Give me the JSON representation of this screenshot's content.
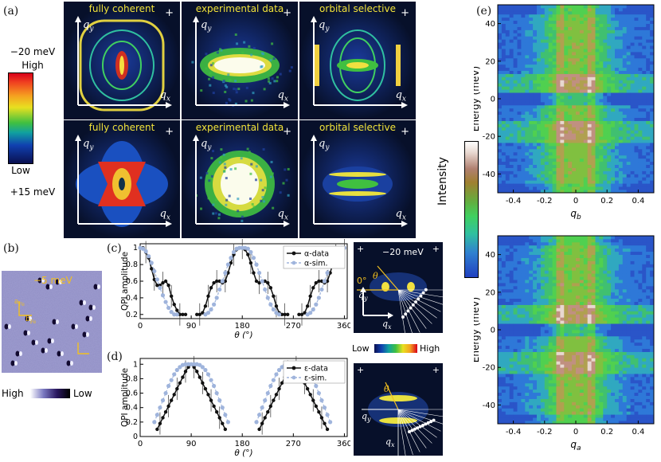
{
  "panel_labels": {
    "a": "(a)",
    "b": "(b)",
    "c": "(c)",
    "d": "(d)",
    "e": "(e)"
  },
  "colorbar_a": {
    "top_energy": "−20 meV",
    "high": "High",
    "low": "Low",
    "bottom_energy": "+15 meV"
  },
  "tiles": {
    "titles": [
      "fully coherent",
      "experimental data",
      "orbital selective"
    ],
    "qx": "q",
    "qx_sub": "x",
    "qy": "q",
    "qy_sub": "y",
    "plus": "+"
  },
  "panel_b": {
    "energy": "−5 meV",
    "high": "High",
    "low": "Low",
    "a_label": "a",
    "a_sub": "Fe",
    "b_label": "b",
    "b_sub": "Fe"
  },
  "panel_c_inset": {
    "energy": "−20 meV",
    "zero": "0°",
    "theta": "θ",
    "qy": "q",
    "qy_sub": "y",
    "qx": "q",
    "qx_sub": "x",
    "plus": "+"
  },
  "mid_colorbar": {
    "low": "Low",
    "high": "High"
  },
  "panel_d_inset": {
    "theta": "θ",
    "qy": "q",
    "qy_sub": "y",
    "qx": "q",
    "qx_sub": "x",
    "plus": "+"
  },
  "panel_e": {
    "intensity_label": "Intensity",
    "ylabel": "Energy (meV)",
    "xlabel_top": "q",
    "xlabel_top_sub": "b",
    "xlabel_bottom": "q",
    "xlabel_bottom_sub": "a"
  },
  "chart_data": [
    {
      "type": "line",
      "panel": "c",
      "ylabel": "QPI amplitude",
      "xlabel": "θ (°)",
      "xlim": [
        0,
        365
      ],
      "ylim": [
        0.15,
        1.05
      ],
      "xticks": [
        0,
        90,
        180,
        270,
        360
      ],
      "yticks": [
        0.2,
        0.4,
        0.6,
        0.8,
        1
      ],
      "legend_position": "top-right",
      "series": [
        {
          "name": "α-data",
          "color": "#111111",
          "segments": [
            {
              "x": [
                5,
                10,
                15,
                20,
                25,
                30,
                35,
                40,
                45,
                50,
                55,
                60,
                65,
                70,
                75,
                80
              ],
              "y": [
                1.0,
                0.95,
                0.88,
                0.75,
                0.62,
                0.55,
                0.55,
                0.58,
                0.6,
                0.55,
                0.42,
                0.32,
                0.25,
                0.2,
                0.2,
                0.2
              ]
            },
            {
              "x": [
                100,
                105,
                110,
                115,
                120,
                125,
                130,
                135,
                140,
                145,
                150,
                155,
                160,
                165,
                170,
                175,
                180,
                185,
                190,
                195,
                200,
                205,
                210,
                215,
                220,
                225,
                230,
                235,
                240,
                245,
                250,
                255,
                260
              ],
              "y": [
                0.2,
                0.2,
                0.22,
                0.3,
                0.42,
                0.52,
                0.58,
                0.6,
                0.6,
                0.58,
                0.6,
                0.7,
                0.82,
                0.92,
                0.98,
                1.0,
                1.0,
                0.98,
                0.92,
                0.82,
                0.7,
                0.6,
                0.58,
                0.6,
                0.6,
                0.58,
                0.52,
                0.42,
                0.3,
                0.22,
                0.2,
                0.2,
                0.2
              ]
            },
            {
              "x": [
                280,
                285,
                290,
                295,
                300,
                305,
                310,
                315,
                320,
                325,
                330,
                335,
                340,
                345,
                350,
                355,
                360
              ],
              "y": [
                0.2,
                0.2,
                0.22,
                0.3,
                0.42,
                0.52,
                0.58,
                0.6,
                0.6,
                0.58,
                0.6,
                0.7,
                0.82,
                0.92,
                0.98,
                1.0,
                1.0
              ]
            }
          ]
        },
        {
          "name": "α-sim.",
          "color": "#9fb4dc",
          "segments": [
            {
              "x": [
                0,
                5,
                10,
                15,
                20,
                25,
                30,
                35,
                40,
                45,
                50,
                55,
                60,
                65
              ],
              "y": [
                1.0,
                0.99,
                0.96,
                0.9,
                0.82,
                0.72,
                0.62,
                0.52,
                0.43,
                0.35,
                0.28,
                0.23,
                0.2,
                0.2
              ]
            },
            {
              "x": [
                115,
                120,
                125,
                130,
                135,
                140,
                145,
                150,
                155,
                160,
                165,
                170,
                175,
                180,
                185,
                190,
                195,
                200,
                205,
                210,
                215,
                220,
                225,
                230,
                235,
                240,
                245
              ],
              "y": [
                0.2,
                0.22,
                0.26,
                0.32,
                0.4,
                0.5,
                0.6,
                0.7,
                0.8,
                0.88,
                0.95,
                0.99,
                1.0,
                1.0,
                1.0,
                0.99,
                0.95,
                0.88,
                0.8,
                0.7,
                0.6,
                0.5,
                0.4,
                0.32,
                0.26,
                0.22,
                0.2
              ]
            },
            {
              "x": [
                295,
                300,
                305,
                310,
                315,
                320,
                325,
                330,
                335,
                340,
                345,
                350,
                355,
                360
              ],
              "y": [
                0.2,
                0.22,
                0.26,
                0.32,
                0.4,
                0.5,
                0.6,
                0.7,
                0.8,
                0.88,
                0.95,
                0.99,
                1.0,
                1.0
              ]
            }
          ]
        }
      ]
    },
    {
      "type": "line",
      "panel": "d",
      "ylabel": "QPI amplitude",
      "xlabel": "θ (°)",
      "xlim": [
        0,
        365
      ],
      "ylim": [
        0,
        1.08
      ],
      "xticks": [
        0,
        90,
        180,
        270,
        360
      ],
      "yticks": [
        0,
        0.2,
        0.4,
        0.6,
        0.8,
        1
      ],
      "legend_position": "top-right",
      "series": [
        {
          "name": "ε-data",
          "color": "#111111",
          "segments": [
            {
              "x": [
                30,
                35,
                40,
                45,
                50,
                55,
                60,
                65,
                70,
                75,
                80,
                85,
                90,
                95,
                100,
                105,
                110,
                115,
                120,
                125,
                130,
                135,
                140,
                145,
                150
              ],
              "y": [
                0.1,
                0.18,
                0.26,
                0.34,
                0.42,
                0.5,
                0.58,
                0.66,
                0.74,
                0.82,
                0.9,
                0.96,
                1.0,
                0.96,
                0.9,
                0.82,
                0.74,
                0.66,
                0.58,
                0.5,
                0.42,
                0.34,
                0.26,
                0.18,
                0.1
              ]
            },
            {
              "x": [
                210,
                215,
                220,
                225,
                230,
                235,
                240,
                245,
                250,
                255,
                260,
                265,
                270,
                275,
                280,
                285,
                290,
                295,
                300,
                305,
                310,
                315,
                320,
                325,
                330
              ],
              "y": [
                0.1,
                0.18,
                0.26,
                0.34,
                0.42,
                0.5,
                0.58,
                0.66,
                0.74,
                0.82,
                0.9,
                0.96,
                1.0,
                0.96,
                0.9,
                0.82,
                0.74,
                0.66,
                0.58,
                0.5,
                0.42,
                0.34,
                0.26,
                0.18,
                0.1
              ]
            }
          ]
        },
        {
          "name": "ε-sim.",
          "color": "#9fb4dc",
          "segments": [
            {
              "x": [
                25,
                30,
                35,
                40,
                45,
                50,
                55,
                60,
                65,
                70,
                75,
                80,
                85,
                90,
                95,
                100,
                105,
                110,
                115,
                120,
                125,
                130,
                135,
                140,
                145,
                150,
                155
              ],
              "y": [
                0.2,
                0.3,
                0.4,
                0.5,
                0.6,
                0.7,
                0.78,
                0.86,
                0.92,
                0.96,
                0.99,
                1.0,
                1.0,
                1.0,
                1.0,
                1.0,
                0.99,
                0.96,
                0.92,
                0.86,
                0.78,
                0.7,
                0.6,
                0.5,
                0.4,
                0.3,
                0.2
              ]
            },
            {
              "x": [
                205,
                210,
                215,
                220,
                225,
                230,
                235,
                240,
                245,
                250,
                255,
                260,
                265,
                270,
                275,
                280,
                285,
                290,
                295,
                300,
                305,
                310,
                315,
                320,
                325,
                330,
                335
              ],
              "y": [
                0.2,
                0.3,
                0.4,
                0.5,
                0.6,
                0.7,
                0.78,
                0.86,
                0.92,
                0.96,
                0.99,
                1.0,
                1.0,
                1.0,
                1.0,
                1.0,
                0.99,
                0.96,
                0.92,
                0.86,
                0.78,
                0.7,
                0.6,
                0.5,
                0.4,
                0.3,
                0.2
              ]
            }
          ]
        }
      ]
    },
    {
      "type": "heatmap",
      "panel": "e-top",
      "ylabel": "Energy (meV)",
      "xlabel": "q_b",
      "xlim": [
        -0.5,
        0.5
      ],
      "ylim": [
        -50,
        50
      ],
      "xticks": [
        -0.4,
        -0.2,
        0,
        0.2,
        0.4
      ],
      "yticks": [
        -40,
        -20,
        0,
        20,
        40
      ]
    },
    {
      "type": "heatmap",
      "panel": "e-bottom",
      "ylabel": "Energy (meV)",
      "xlabel": "q_a",
      "xlim": [
        -0.5,
        0.5
      ],
      "ylim": [
        -50,
        50
      ],
      "xticks": [
        -0.4,
        -0.2,
        0,
        0.2,
        0.4
      ],
      "yticks": [
        -40,
        -20,
        0,
        20,
        40
      ]
    }
  ]
}
